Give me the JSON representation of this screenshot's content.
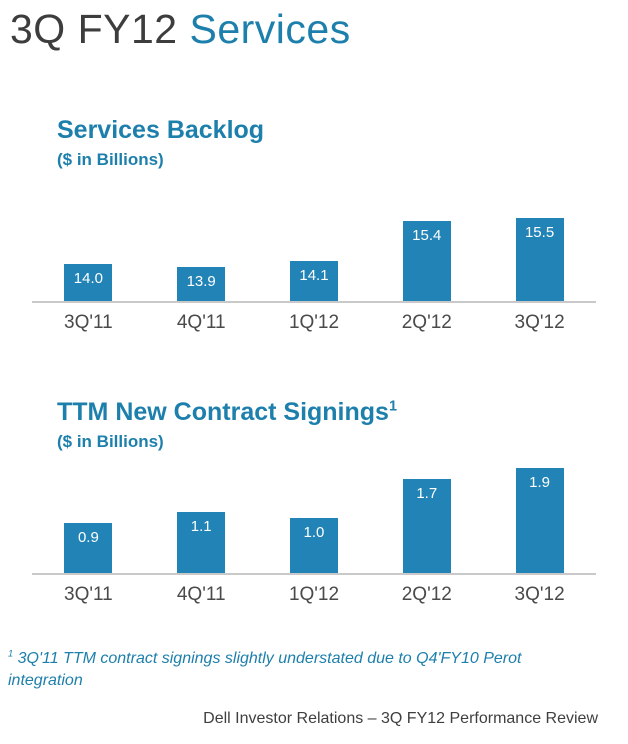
{
  "page": {
    "title_dark": "3Q FY12",
    "title_accent": "Services"
  },
  "chart_data": [
    {
      "type": "bar",
      "title": "Services Backlog",
      "title_sup": "",
      "subtitle": "($ in Billions)",
      "categories": [
        "3Q'11",
        "4Q'11",
        "1Q'12",
        "2Q'12",
        "3Q'12"
      ],
      "values": [
        14.0,
        13.9,
        14.1,
        15.4,
        15.5
      ],
      "ylim": [
        12.8,
        16.0
      ],
      "grid": "off",
      "legend": "none",
      "value_labels": "inside-end, white, one decimal"
    },
    {
      "type": "bar",
      "title": "TTM New Contract Signings",
      "title_sup": "1",
      "subtitle": "($ in Billions)",
      "categories": [
        "3Q'11",
        "4Q'11",
        "1Q'12",
        "2Q'12",
        "3Q'12"
      ],
      "values": [
        0.9,
        1.1,
        1.0,
        1.7,
        1.9
      ],
      "ylim": [
        0,
        2.0
      ],
      "grid": "off",
      "legend": "none",
      "value_labels": "inside-end, white, one decimal"
    }
  ],
  "footnote": {
    "sup": "1",
    "text": " 3Q'11  TTM contract signings slightly understated due to  Q4'FY10 Perot integration"
  },
  "footer": {
    "text": "Dell Investor Relations – 3Q FY12 Performance Review"
  },
  "colors": {
    "accent_text": "#1d7fab",
    "title_dark": "#3d3d3d",
    "bar_fill": "#2183b6",
    "bar_label": "#ffffff",
    "axis_line": "#c9c9c9",
    "category_text": "#4a4a4a"
  }
}
